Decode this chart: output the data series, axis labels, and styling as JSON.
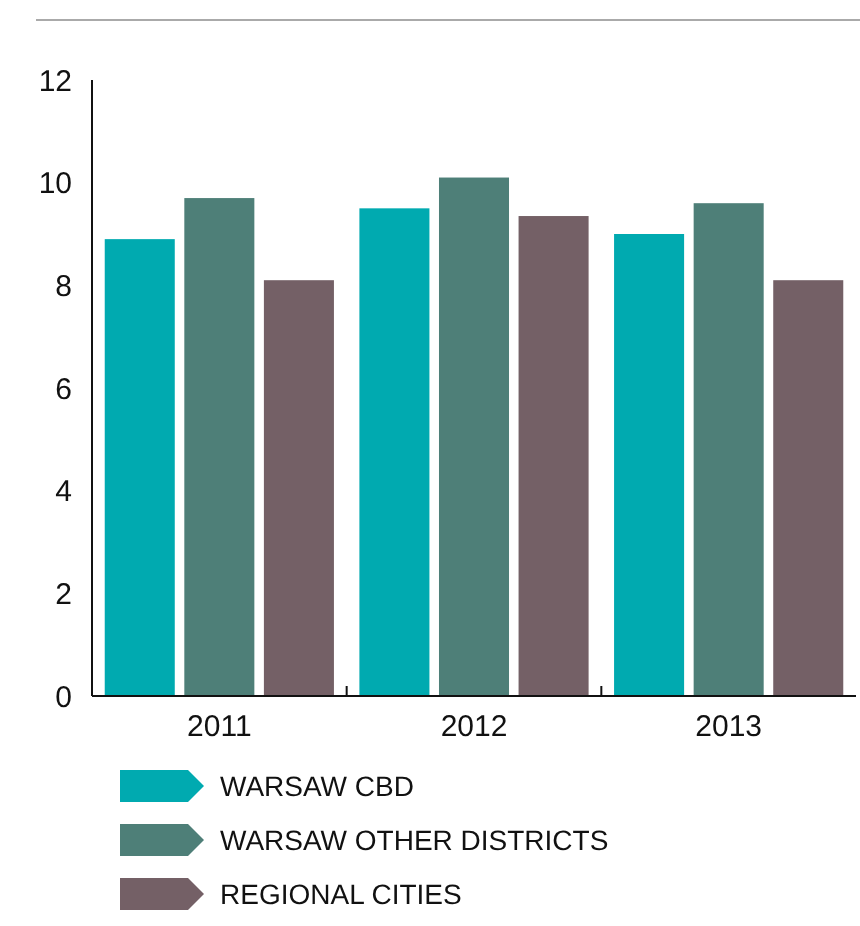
{
  "chart_data": {
    "type": "bar",
    "categories": [
      "2011",
      "2012",
      "2013"
    ],
    "series": [
      {
        "name": "WARSAW CBD",
        "color": "#00aab0",
        "values": [
          8.9,
          9.5,
          9.0
        ]
      },
      {
        "name": "WARSAW OTHER DISTRICTS",
        "color": "#4e7f78",
        "values": [
          9.7,
          10.1,
          9.6
        ]
      },
      {
        "name": "REGIONAL CITIES",
        "color": "#746066",
        "values": [
          8.1,
          9.35,
          8.1
        ]
      }
    ],
    "ylim": [
      0,
      12
    ],
    "yticks": [
      0,
      2,
      4,
      6,
      8,
      10,
      12
    ],
    "grid": false,
    "legend": "bottom"
  }
}
